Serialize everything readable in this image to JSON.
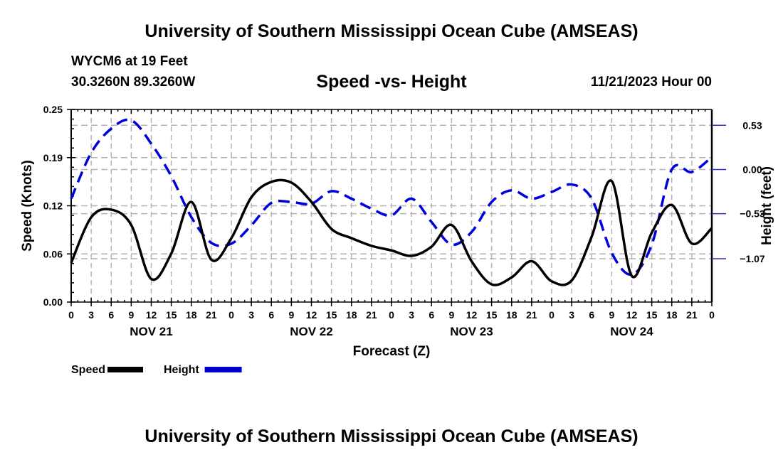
{
  "header": {
    "main_title": "University of Southern Mississippi Ocean Cube (AMSEAS)",
    "station": "WYCM6 at 19 Feet",
    "coords": "30.3260N  89.3260W",
    "subtitle": "Speed -vs- Height",
    "datetime": "11/21/2023 Hour 00",
    "bottom_title": "University of Southern Mississippi Ocean Cube (AMSEAS)"
  },
  "chart_data": {
    "type": "line",
    "title": "Speed -vs- Height",
    "xlabel": "Forecast (Z)",
    "ylabel": "Speed (Knots)",
    "y2label": "Height (feet)",
    "xlim_hours": [
      0,
      96
    ],
    "x_tick_labels": [
      "0",
      "3",
      "6",
      "9",
      "12",
      "15",
      "18",
      "21",
      "0",
      "3",
      "6",
      "9",
      "12",
      "15",
      "18",
      "21",
      "0",
      "3",
      "6",
      "9",
      "12",
      "15",
      "18",
      "21",
      "0",
      "3",
      "6",
      "9",
      "12",
      "15",
      "18",
      "21",
      "0"
    ],
    "date_labels": [
      {
        "label": "NOV 21",
        "hour": 12
      },
      {
        "label": "NOV 22",
        "hour": 36
      },
      {
        "label": "NOV 23",
        "hour": 60
      },
      {
        "label": "NOV 24",
        "hour": 84
      }
    ],
    "ylim": [
      0,
      0.25
    ],
    "y_ticks": [
      {
        "value": 0.0,
        "label": "0.00"
      },
      {
        "value": 0.0625,
        "label": "0.06"
      },
      {
        "value": 0.125,
        "label": "0.12"
      },
      {
        "value": 0.1875,
        "label": "0.19"
      },
      {
        "value": 0.25,
        "label": "0.25"
      }
    ],
    "y2lim": [
      -1.59,
      0.72
    ],
    "y2_ticks": [
      {
        "value": 0.53,
        "label": "0.53"
      },
      {
        "value": 0.0,
        "label": "0.00"
      },
      {
        "value": -0.53,
        "label": "−0.53"
      },
      {
        "value": -1.07,
        "label": "−1.07"
      }
    ],
    "grid": true,
    "legend": "bottom-left",
    "x": [
      0,
      3,
      6,
      9,
      12,
      15,
      18,
      21,
      24,
      27,
      30,
      33,
      36,
      39,
      42,
      45,
      48,
      51,
      54,
      57,
      60,
      63,
      66,
      69,
      72,
      75,
      78,
      81,
      84,
      87,
      90,
      93,
      96
    ],
    "series": [
      {
        "name": "Speed",
        "axis": "left",
        "color": "#000000",
        "style": "solid",
        "values": [
          0.051,
          0.11,
          0.12,
          0.1,
          0.03,
          0.063,
          0.13,
          0.055,
          0.083,
          0.136,
          0.156,
          0.155,
          0.13,
          0.095,
          0.083,
          0.073,
          0.067,
          0.06,
          0.072,
          0.1,
          0.053,
          0.023,
          0.032,
          0.053,
          0.027,
          0.028,
          0.085,
          0.157,
          0.034,
          0.09,
          0.126,
          0.076,
          0.096
        ]
      },
      {
        "name": "Height",
        "axis": "right",
        "color": "#0000dd",
        "style": "dashed",
        "values": [
          -0.35,
          0.2,
          0.49,
          0.59,
          0.31,
          -0.08,
          -0.57,
          -0.88,
          -0.89,
          -0.67,
          -0.4,
          -0.39,
          -0.41,
          -0.26,
          -0.35,
          -0.47,
          -0.55,
          -0.35,
          -0.63,
          -0.9,
          -0.75,
          -0.39,
          -0.25,
          -0.35,
          -0.27,
          -0.18,
          -0.35,
          -1.0,
          -1.26,
          -0.9,
          0.0,
          -0.03,
          0.15
        ]
      }
    ]
  }
}
